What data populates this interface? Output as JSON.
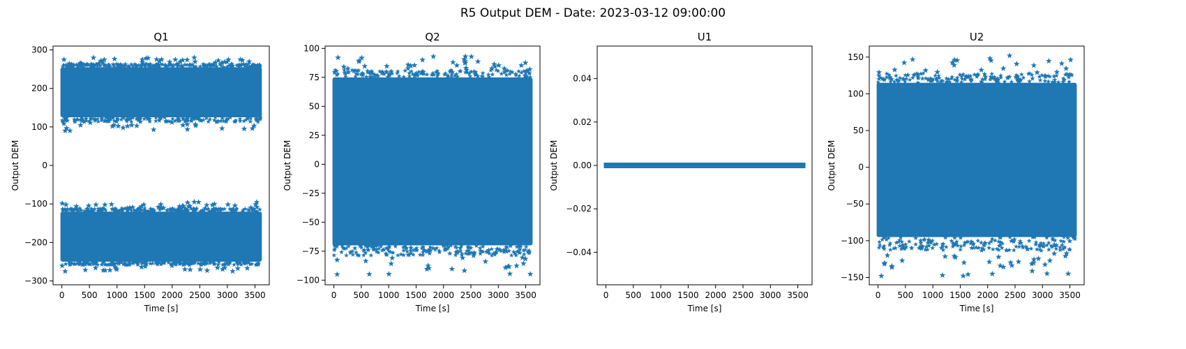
{
  "figure": {
    "suptitle": "R5 Output DEM - Date: 2023-03-12 09:00:00"
  },
  "colors": {
    "series": "#1f77b4"
  },
  "chart_data": [
    {
      "type": "scatter",
      "marker": "star",
      "title": "Q1",
      "xlabel": "Time [s]",
      "ylabel": "Output DEM",
      "xlim": [
        -160,
        3760
      ],
      "ylim": [
        -310,
        310
      ],
      "xticks": [
        0,
        500,
        1000,
        1500,
        2000,
        2500,
        3000,
        3500
      ],
      "yticks": [
        -300,
        -200,
        -100,
        0,
        100,
        200,
        300
      ],
      "x_range": [
        0,
        3600
      ],
      "bands": [
        {
          "center": 180,
          "core_low": 125,
          "core_high": 255,
          "min": 90,
          "max": 280
        },
        {
          "center": -180,
          "core_low": -250,
          "core_high": -120,
          "min": -275,
          "max": -95
        }
      ],
      "grid": false
    },
    {
      "type": "scatter",
      "marker": "star",
      "title": "Q2",
      "xlabel": "Time [s]",
      "ylabel": "Output DEM",
      "xlim": [
        -160,
        3760
      ],
      "ylim": [
        -104,
        102
      ],
      "xticks": [
        0,
        500,
        1000,
        1500,
        2000,
        2500,
        3000,
        3500
      ],
      "yticks": [
        -100,
        -75,
        -50,
        -25,
        0,
        25,
        50,
        75,
        100
      ],
      "x_range": [
        0,
        3600
      ],
      "bands": [
        {
          "center": 0,
          "core_low": -70,
          "core_high": 75,
          "min": -95,
          "max": 93
        }
      ],
      "grid": false
    },
    {
      "type": "scatter",
      "marker": "star",
      "title": "U1",
      "xlabel": "Time [s]",
      "ylabel": "Output DEM",
      "xlim": [
        -160,
        3760
      ],
      "ylim": [
        -0.055,
        0.055
      ],
      "xticks": [
        0,
        500,
        1000,
        1500,
        2000,
        2500,
        3000,
        3500
      ],
      "yticks": [
        -0.04,
        -0.02,
        0.0,
        0.02,
        0.04
      ],
      "ytick_labels": [
        "−0.04",
        "−0.02",
        "0.00",
        "0.02",
        "0.04"
      ],
      "x_range": [
        0,
        3600
      ],
      "constant_value": 0.0,
      "grid": false
    },
    {
      "type": "scatter",
      "marker": "star",
      "title": "U2",
      "xlabel": "Time [s]",
      "ylabel": "Output DEM",
      "xlim": [
        -160,
        3760
      ],
      "ylim": [
        -160,
        165
      ],
      "xticks": [
        0,
        500,
        1000,
        1500,
        2000,
        2500,
        3000,
        3500
      ],
      "yticks": [
        -150,
        -100,
        -50,
        0,
        50,
        100,
        150
      ],
      "x_range": [
        0,
        3600
      ],
      "bands": [
        {
          "center": 0,
          "core_low": -95,
          "core_high": 115,
          "min": -148,
          "max": 152
        }
      ],
      "grid": false
    }
  ]
}
